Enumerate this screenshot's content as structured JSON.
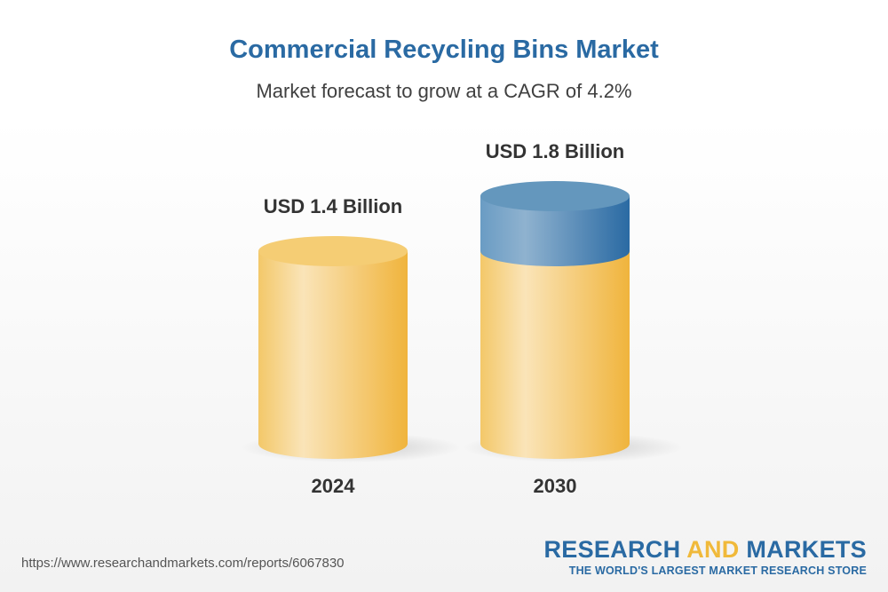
{
  "header": {
    "title": "Commercial Recycling Bins Market",
    "subtitle": "Market forecast to grow at a CAGR of 4.2%"
  },
  "chart_data": {
    "type": "bar",
    "style": "3d-cylinder",
    "categories": [
      "2024",
      "2030"
    ],
    "values": [
      1.4,
      1.8
    ],
    "unit": "USD Billion",
    "data_labels": [
      "USD 1.4 Billion",
      "USD 1.8 Billion"
    ],
    "colors": {
      "base": "#f0b93a",
      "growth": "#2a6aa3"
    },
    "grid": false
  },
  "footer": {
    "url": "https://www.researchandmarkets.com/reports/6067830",
    "logo_part1": "RESEARCH ",
    "logo_part2": "AND",
    "logo_part3": " MARKETS",
    "logo_tagline": "THE WORLD'S LARGEST MARKET RESEARCH STORE"
  }
}
